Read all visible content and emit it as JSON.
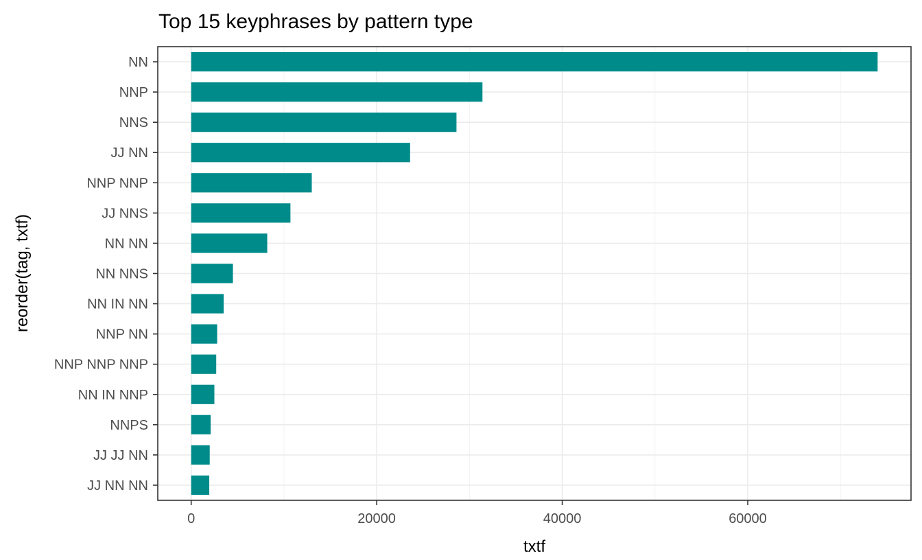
{
  "chart_data": {
    "type": "bar",
    "orientation": "horizontal",
    "title": "Top 15 keyphrases by pattern type",
    "xlabel": "txtf",
    "ylabel": "reorder(tag, txtf)",
    "categories": [
      "NN",
      "NNP",
      "NNS",
      "JJ NN",
      "NNP NNP",
      "JJ NNS",
      "NN NN",
      "NN NNS",
      "NN IN NN",
      "NNP NN",
      "NNP NNP NNP",
      "NN IN NNP",
      "NNPS",
      "JJ JJ NN",
      "JJ NN NN"
    ],
    "values": [
      74000,
      31400,
      28600,
      23600,
      13000,
      10700,
      8200,
      4500,
      3500,
      2800,
      2700,
      2500,
      2100,
      2000,
      1950
    ],
    "xlim": [
      -3600,
      77600
    ],
    "xticks": [
      0,
      20000,
      40000,
      60000
    ],
    "xtick_labels": [
      "0",
      "20000",
      "40000",
      "60000"
    ],
    "grid": true,
    "legend": "none",
    "colors": {
      "bar": "#008B8B",
      "panel_border": "#333333",
      "grid": "#ebebeb"
    }
  }
}
